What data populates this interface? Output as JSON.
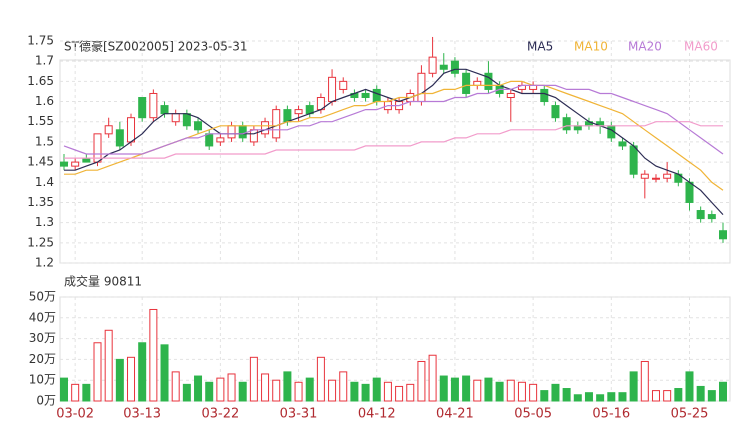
{
  "chart_data": {
    "type": "candlestick",
    "title": "ST德豪[SZ002005] 2023-05-31",
    "categories": [
      null,
      "03-02",
      null,
      null,
      null,
      null,
      null,
      "03-13",
      null,
      null,
      null,
      null,
      null,
      null,
      "03-22",
      null,
      null,
      null,
      null,
      null,
      null,
      "03-31",
      null,
      null,
      null,
      null,
      null,
      null,
      "04-12",
      null,
      null,
      null,
      null,
      null,
      null,
      "04-21",
      null,
      null,
      null,
      null,
      null,
      null,
      "05-05",
      null,
      null,
      null,
      null,
      null,
      null,
      "05-16",
      null,
      null,
      null,
      null,
      null,
      null,
      "05-25",
      null,
      null,
      null
    ],
    "open": [
      1.45,
      1.44,
      1.46,
      1.45,
      1.52,
      1.53,
      1.5,
      1.61,
      1.56,
      1.59,
      1.55,
      1.57,
      1.55,
      1.52,
      1.5,
      1.51,
      1.54,
      1.5,
      1.52,
      1.51,
      1.58,
      1.57,
      1.59,
      1.58,
      1.6,
      1.63,
      1.62,
      1.62,
      1.63,
      1.58,
      1.58,
      1.6,
      1.6,
      1.67,
      1.69,
      1.7,
      1.67,
      1.64,
      1.67,
      1.64,
      1.61,
      1.63,
      1.63,
      1.63,
      1.59,
      1.56,
      1.54,
      1.55,
      1.55,
      1.54,
      1.5,
      1.49,
      1.41,
      1.41,
      1.41,
      1.42,
      1.4,
      1.33,
      1.32,
      1.28
    ],
    "high": [
      1.47,
      1.46,
      1.47,
      1.52,
      1.56,
      1.55,
      1.57,
      1.61,
      1.63,
      1.6,
      1.58,
      1.58,
      1.56,
      1.53,
      1.52,
      1.55,
      1.55,
      1.54,
      1.56,
      1.59,
      1.59,
      1.59,
      1.6,
      1.62,
      1.68,
      1.66,
      1.63,
      1.63,
      1.64,
      1.61,
      1.61,
      1.63,
      1.69,
      1.76,
      1.72,
      1.71,
      1.68,
      1.66,
      1.7,
      1.65,
      1.63,
      1.65,
      1.65,
      1.64,
      1.6,
      1.57,
      1.55,
      1.56,
      1.56,
      1.55,
      1.51,
      1.5,
      1.43,
      1.42,
      1.45,
      1.43,
      1.41,
      1.34,
      1.33,
      1.3
    ],
    "low": [
      1.43,
      1.43,
      1.45,
      1.44,
      1.51,
      1.48,
      1.49,
      1.55,
      1.55,
      1.56,
      1.54,
      1.53,
      1.52,
      1.48,
      1.49,
      1.5,
      1.5,
      1.49,
      1.51,
      1.5,
      1.54,
      1.55,
      1.56,
      1.57,
      1.59,
      1.62,
      1.6,
      1.6,
      1.59,
      1.57,
      1.57,
      1.59,
      1.59,
      1.66,
      1.67,
      1.66,
      1.61,
      1.63,
      1.62,
      1.61,
      1.55,
      1.62,
      1.62,
      1.59,
      1.55,
      1.52,
      1.52,
      1.53,
      1.52,
      1.5,
      1.48,
      1.41,
      1.36,
      1.4,
      1.4,
      1.39,
      1.33,
      1.3,
      1.3,
      1.25
    ],
    "close": [
      1.44,
      1.45,
      1.45,
      1.52,
      1.54,
      1.49,
      1.56,
      1.56,
      1.62,
      1.57,
      1.57,
      1.54,
      1.53,
      1.49,
      1.51,
      1.54,
      1.51,
      1.53,
      1.55,
      1.58,
      1.55,
      1.58,
      1.57,
      1.61,
      1.66,
      1.65,
      1.61,
      1.61,
      1.6,
      1.6,
      1.6,
      1.62,
      1.67,
      1.71,
      1.68,
      1.67,
      1.62,
      1.65,
      1.63,
      1.62,
      1.62,
      1.64,
      1.64,
      1.6,
      1.56,
      1.53,
      1.53,
      1.54,
      1.54,
      1.51,
      1.49,
      1.42,
      1.42,
      1.41,
      1.42,
      1.4,
      1.35,
      1.31,
      1.31,
      1.26
    ],
    "series": [
      {
        "name": "MA5",
        "color": "#2c2c54",
        "values": [
          1.43,
          1.43,
          1.44,
          1.45,
          1.47,
          1.48,
          1.5,
          1.52,
          1.55,
          1.57,
          1.57,
          1.57,
          1.56,
          1.54,
          1.52,
          1.52,
          1.52,
          1.52,
          1.53,
          1.54,
          1.55,
          1.56,
          1.57,
          1.58,
          1.6,
          1.61,
          1.62,
          1.63,
          1.62,
          1.61,
          1.6,
          1.61,
          1.62,
          1.64,
          1.67,
          1.68,
          1.68,
          1.67,
          1.66,
          1.64,
          1.63,
          1.62,
          1.62,
          1.62,
          1.61,
          1.59,
          1.57,
          1.55,
          1.54,
          1.53,
          1.51,
          1.49,
          1.46,
          1.44,
          1.43,
          1.42,
          1.4,
          1.38,
          1.35,
          1.32
        ]
      },
      {
        "name": "MA10",
        "color": "#f0b437",
        "values": [
          1.42,
          1.42,
          1.43,
          1.43,
          1.44,
          1.45,
          1.46,
          1.47,
          1.48,
          1.49,
          1.5,
          1.51,
          1.52,
          1.53,
          1.54,
          1.54,
          1.54,
          1.54,
          1.54,
          1.54,
          1.55,
          1.55,
          1.56,
          1.56,
          1.57,
          1.58,
          1.59,
          1.59,
          1.6,
          1.6,
          1.61,
          1.61,
          1.62,
          1.62,
          1.63,
          1.63,
          1.64,
          1.64,
          1.64,
          1.64,
          1.65,
          1.65,
          1.64,
          1.64,
          1.63,
          1.62,
          1.61,
          1.6,
          1.59,
          1.58,
          1.57,
          1.55,
          1.53,
          1.51,
          1.49,
          1.47,
          1.45,
          1.43,
          1.4,
          1.38
        ]
      },
      {
        "name": "MA20",
        "color": "#b77ad6",
        "values": [
          1.49,
          1.48,
          1.47,
          1.47,
          1.47,
          1.47,
          1.47,
          1.47,
          1.48,
          1.49,
          1.5,
          1.51,
          1.51,
          1.52,
          1.52,
          1.52,
          1.52,
          1.53,
          1.53,
          1.53,
          1.53,
          1.54,
          1.54,
          1.55,
          1.55,
          1.56,
          1.57,
          1.58,
          1.58,
          1.59,
          1.59,
          1.6,
          1.6,
          1.6,
          1.6,
          1.61,
          1.61,
          1.62,
          1.62,
          1.63,
          1.63,
          1.64,
          1.64,
          1.64,
          1.64,
          1.63,
          1.63,
          1.63,
          1.62,
          1.62,
          1.61,
          1.6,
          1.59,
          1.58,
          1.57,
          1.55,
          1.53,
          1.51,
          1.49,
          1.47
        ]
      },
      {
        "name": "MA60",
        "color": "#f29ccb",
        "values": [
          1.46,
          1.46,
          1.46,
          1.46,
          1.46,
          1.46,
          1.46,
          1.46,
          1.46,
          1.46,
          1.47,
          1.47,
          1.47,
          1.47,
          1.47,
          1.47,
          1.47,
          1.47,
          1.47,
          1.48,
          1.48,
          1.48,
          1.48,
          1.48,
          1.48,
          1.48,
          1.48,
          1.49,
          1.49,
          1.49,
          1.49,
          1.49,
          1.5,
          1.5,
          1.5,
          1.51,
          1.51,
          1.52,
          1.52,
          1.52,
          1.53,
          1.53,
          1.53,
          1.53,
          1.53,
          1.54,
          1.54,
          1.54,
          1.54,
          1.54,
          1.54,
          1.54,
          1.54,
          1.55,
          1.55,
          1.55,
          1.55,
          1.54,
          1.54,
          1.54
        ]
      }
    ],
    "up_color": "#e8333c",
    "down_color": "#2eb44c",
    "ylim": [
      1.2,
      1.75
    ],
    "yticks": [
      1.2,
      1.25,
      1.3,
      1.35,
      1.4,
      1.45,
      1.5,
      1.55,
      1.6,
      1.65,
      1.7,
      1.75
    ],
    "grid": true,
    "volume": {
      "title": "成交量 90811",
      "values": [
        11,
        8,
        8,
        28,
        34,
        20,
        21,
        28,
        44,
        27,
        14,
        8,
        12,
        9,
        11,
        13,
        9,
        21,
        13,
        10,
        14,
        9,
        11,
        21,
        10,
        14,
        9,
        8,
        11,
        9,
        7,
        8,
        19,
        22,
        12,
        11,
        12,
        10,
        11,
        9,
        10,
        9,
        8,
        5,
        8,
        6,
        3,
        4,
        3,
        4,
        4,
        14,
        19,
        5,
        5,
        6,
        14,
        7,
        5,
        9
      ],
      "ylim": [
        0,
        50
      ],
      "yticks": [
        {
          "value": 0,
          "label": "0万"
        },
        {
          "value": 10,
          "label": "10万"
        },
        {
          "value": 20,
          "label": "20万"
        },
        {
          "value": 30,
          "label": "30万"
        },
        {
          "value": 40,
          "label": "40万"
        },
        {
          "value": 50,
          "label": "50万"
        }
      ]
    }
  }
}
